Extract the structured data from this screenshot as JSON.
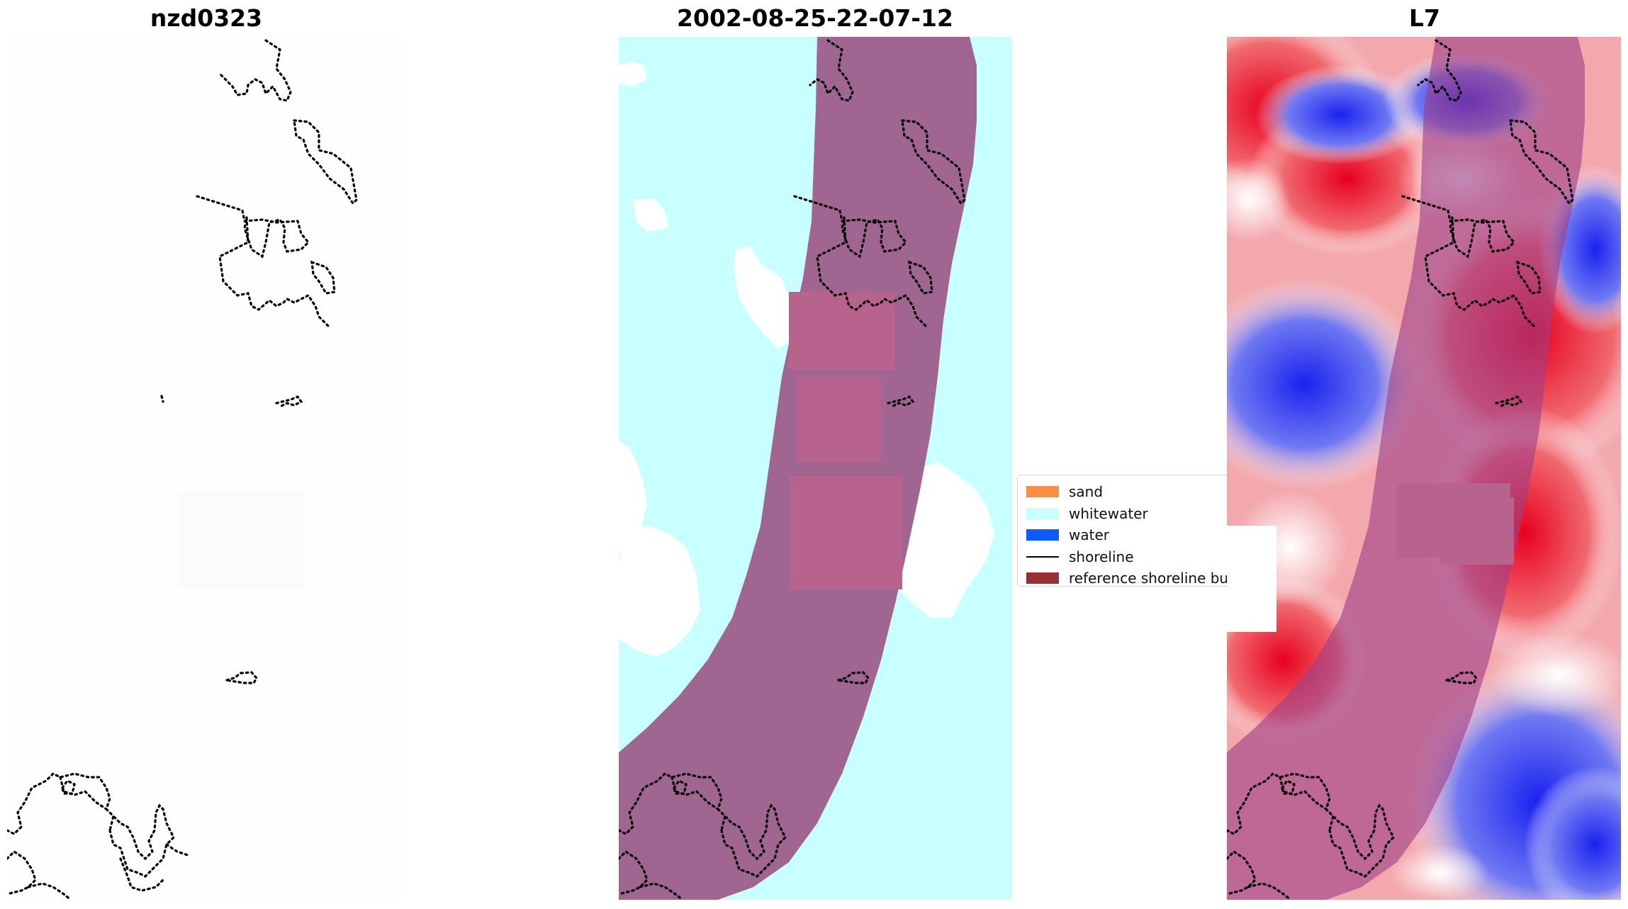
{
  "titles": {
    "left": "nzd0323",
    "center": "2002-08-25-22-07-12",
    "right": "L7"
  },
  "legend": {
    "items": [
      {
        "label": "sand",
        "color": "#ff8c3f",
        "kind": "patch"
      },
      {
        "label": "whitewater",
        "color": "#c8ffff",
        "kind": "patch"
      },
      {
        "label": "water",
        "color": "#0a5cff",
        "kind": "patch"
      },
      {
        "label": "shoreline",
        "color": "#000000",
        "kind": "line"
      },
      {
        "label": "reference shoreline buffer",
        "color": "#9a2f33",
        "kind": "patch"
      }
    ]
  },
  "colors": {
    "whitewater": "#c8ffff",
    "buffer_overlay": "#a06590",
    "buffer_light": "#b8628e",
    "ndwi_red": "#e8001e",
    "ndwi_blue": "#1a22ee"
  }
}
